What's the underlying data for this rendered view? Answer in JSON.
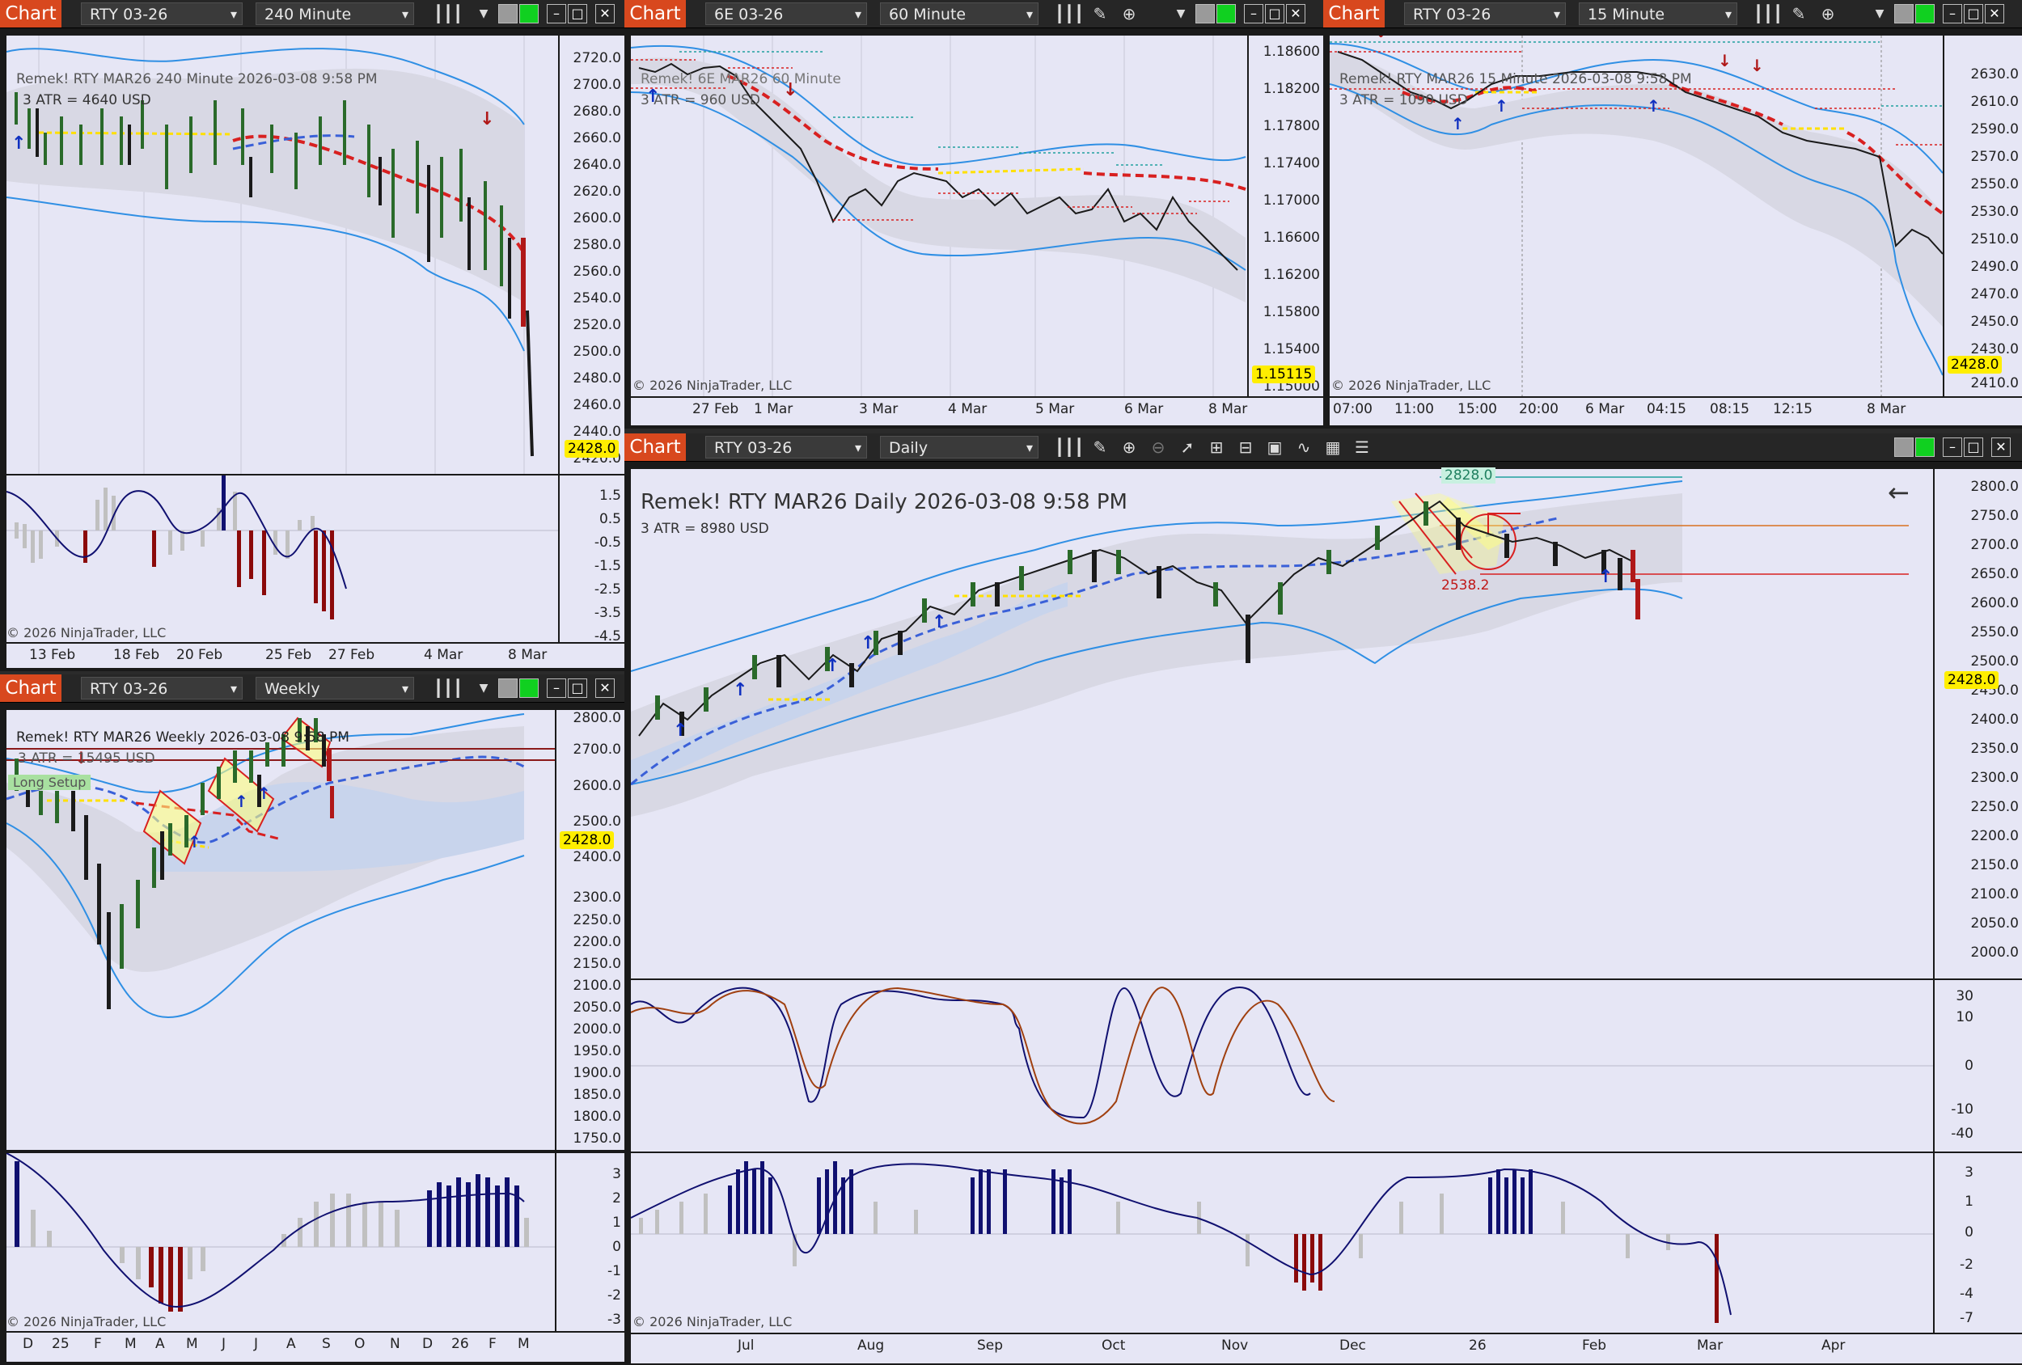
{
  "colors": {
    "accent": "#d8481e",
    "chart_bg": "#e6e6f5",
    "up_arrow": "#1030c0",
    "down_arrow": "#b01818",
    "ma_red": "#d82020",
    "ma_blue": "#3a60d8",
    "band": "#3090e0"
  },
  "windows": [
    {
      "id": "w1",
      "tab": "Chart",
      "instrument": "RTY 03-26",
      "interval": "240 Minute",
      "title": "Remek!  RTY MAR26  240 Minute  2026-03-08 9:58 PM",
      "subtitle": "3 ATR = 4640 USD",
      "price": "2428.0",
      "copyright": "© 2026 NinjaTrader, LLC",
      "y_labels": [
        "2720.0",
        "2700.0",
        "2680.0",
        "2660.0",
        "2640.0",
        "2620.0",
        "2600.0",
        "2580.0",
        "2560.0",
        "2540.0",
        "2520.0",
        "2500.0",
        "2480.0",
        "2460.0",
        "2440.0",
        "2420.0"
      ],
      "ind_labels": [
        "1.5",
        "0.5",
        "-0.5",
        "-1.5",
        "-2.5",
        "-3.5",
        "-4.5"
      ],
      "x_labels": [
        "13 Feb",
        "18 Feb",
        "20 Feb",
        "25 Feb",
        "27 Feb",
        "4 Mar",
        "8 Mar"
      ]
    },
    {
      "id": "w2",
      "tab": "Chart",
      "instrument": "6E 03-26",
      "interval": "60 Minute",
      "title": "Remek!  6E MAR26  60 Minute",
      "subtitle": "3 ATR = 960 USD",
      "price": "1.15115",
      "copyright": "© 2026 NinjaTrader, LLC",
      "y_labels": [
        "1.18600",
        "1.18200",
        "1.17800",
        "1.17400",
        "1.17000",
        "1.16600",
        "1.16200",
        "1.15800",
        "1.15400",
        "1.15000"
      ],
      "x_labels": [
        "27 Feb",
        "1 Mar",
        "3 Mar",
        "4 Mar",
        "5 Mar",
        "6 Mar",
        "8 Mar"
      ]
    },
    {
      "id": "w3",
      "tab": "Chart",
      "instrument": "RTY 03-26",
      "interval": "15 Minute",
      "title": "Remek!  RTY MAR26  15 Minute  2026-03-08 9:58 PM",
      "subtitle": "3 ATR = 1090 USD",
      "price": "2428.0",
      "copyright": "© 2026 NinjaTrader, LLC",
      "y_labels": [
        "2630.0",
        "2610.0",
        "2590.0",
        "2570.0",
        "2550.0",
        "2530.0",
        "2510.0",
        "2490.0",
        "2470.0",
        "2450.0",
        "2430.0",
        "2410.0"
      ],
      "x_labels": [
        "07:00",
        "11:00",
        "15:00",
        "20:00",
        "6 Mar",
        "04:15",
        "08:15",
        "12:15",
        "8 Mar"
      ]
    },
    {
      "id": "w4",
      "tab": "Chart",
      "instrument": "RTY 03-26",
      "interval": "Weekly",
      "title": "Remek!  RTY MAR26  Weekly  2026-03-08 9:58 PM",
      "subtitle": "3 ATR = 15495 USD",
      "setup_label": "Long Setup",
      "price": "2428.0",
      "copyright": "© 2026 NinjaTrader, LLC",
      "y_labels": [
        "2800.0",
        "2700.0",
        "2600.0",
        "2500.0",
        "2400.0",
        "2300.0",
        "2250.0",
        "2200.0",
        "2150.0",
        "2100.0",
        "2050.0",
        "2000.0",
        "1950.0",
        "1900.0",
        "1850.0",
        "1800.0",
        "1750.0"
      ],
      "ind_labels": [
        "3",
        "2",
        "1",
        "0",
        "-1",
        "-2",
        "-3"
      ],
      "x_labels": [
        "D",
        "25",
        "F",
        "M",
        "A",
        "M",
        "J",
        "J",
        "A",
        "S",
        "O",
        "N",
        "D",
        "26",
        "F",
        "M"
      ]
    },
    {
      "id": "w5",
      "tab": "Chart",
      "instrument": "RTY 03-26",
      "interval": "Daily",
      "title": "Remek!  RTY MAR26  Daily  2026-03-08 9:58 PM",
      "subtitle": "3 ATR = 8980 USD",
      "level_top": "2828.0",
      "level_bottom": "2538.2",
      "price": "2428.0",
      "copyright": "© 2026 NinjaTrader, LLC",
      "y_labels": [
        "2800.0",
        "2750.0",
        "2700.0",
        "2650.0",
        "2600.0",
        "2550.0",
        "2500.0",
        "2450.0",
        "2400.0",
        "2350.0",
        "2300.0",
        "2250.0",
        "2200.0",
        "2150.0",
        "2100.0",
        "2050.0",
        "2000.0"
      ],
      "osc_labels": [
        "30",
        "10",
        "0",
        "-10",
        "-40"
      ],
      "ind_labels": [
        "3",
        "1",
        "0",
        "-2",
        "-4",
        "-7"
      ],
      "x_labels": [
        "Jul",
        "Aug",
        "Sep",
        "Oct",
        "Nov",
        "Dec",
        "26",
        "Feb",
        "Mar",
        "Apr"
      ]
    }
  ]
}
